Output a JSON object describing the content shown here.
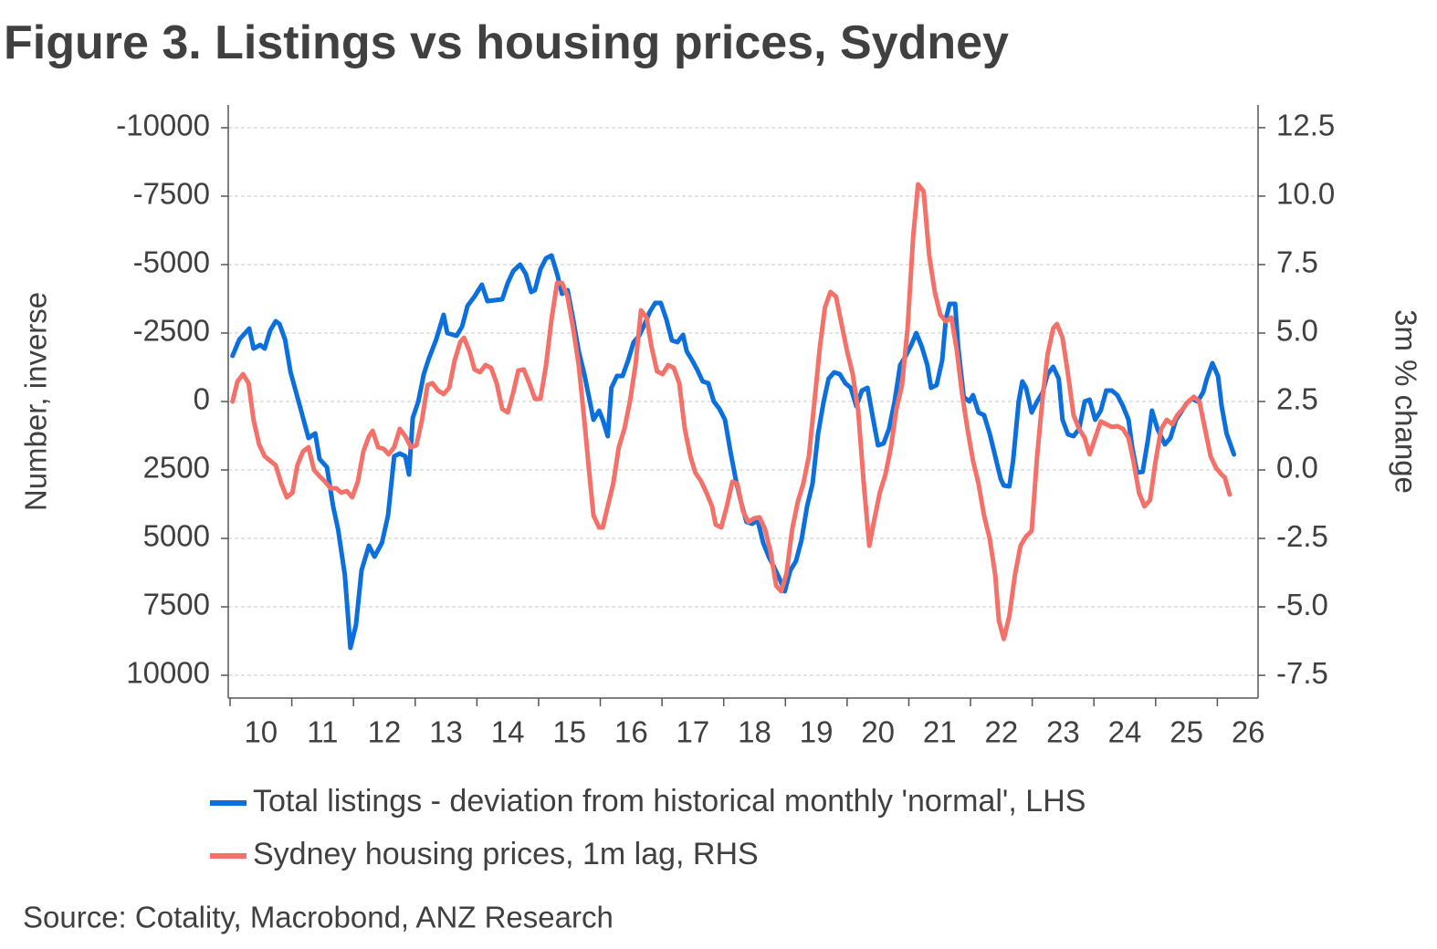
{
  "chart_data": {
    "type": "line",
    "title": "Figure 3. Listings vs housing prices, Sydney",
    "ylabel": "Number, inverse",
    "y2label": "3m % change",
    "source": "Source: Cotality, Macrobond, ANZ Research",
    "grid": true,
    "xlim": [
      2009.97,
      2026.66
    ],
    "xticks": [
      {
        "value": 2010,
        "label": "10"
      },
      {
        "value": 2011,
        "label": "11"
      },
      {
        "value": 2012,
        "label": "12"
      },
      {
        "value": 2013,
        "label": "13"
      },
      {
        "value": 2014,
        "label": "14"
      },
      {
        "value": 2015,
        "label": "15"
      },
      {
        "value": 2016,
        "label": "16"
      },
      {
        "value": 2017,
        "label": "17"
      },
      {
        "value": 2018,
        "label": "18"
      },
      {
        "value": 2019,
        "label": "19"
      },
      {
        "value": 2020,
        "label": "20"
      },
      {
        "value": 2021,
        "label": "21"
      },
      {
        "value": 2022,
        "label": "22"
      },
      {
        "value": 2023,
        "label": "23"
      },
      {
        "value": 2024,
        "label": "24"
      },
      {
        "value": 2025,
        "label": "25"
      },
      {
        "value": 2026,
        "label": "26"
      }
    ],
    "ylim": [
      10833,
      -10833
    ],
    "yticks": [
      -10000,
      -7500,
      -5000,
      -2500,
      0,
      2500,
      5000,
      7500,
      10000
    ],
    "y2lim": [
      -8.33,
      13.33
    ],
    "y2ticks": [
      {
        "value": 12.5,
        "label": "12.5"
      },
      {
        "value": 10,
        "label": "10.0"
      },
      {
        "value": 7.5,
        "label": "7.5"
      },
      {
        "value": 5,
        "label": "5.0"
      },
      {
        "value": 2.5,
        "label": "2.5"
      },
      {
        "value": 0,
        "label": "0.0"
      },
      {
        "value": -2.5,
        "label": "-2.5"
      },
      {
        "value": -5,
        "label": "-5.0"
      },
      {
        "value": -7.5,
        "label": "-7.5"
      }
    ],
    "series": [
      {
        "name": "Total listings - deviation from historical monthly 'normal', LHS",
        "color": "#0b6fdc",
        "axis": "y",
        "x": [
          2010.04,
          2010.15,
          2010.31,
          2010.38,
          2010.49,
          2010.56,
          2010.65,
          2010.74,
          2010.8,
          2010.89,
          2010.98,
          2011.15,
          2011.27,
          2011.38,
          2011.45,
          2011.57,
          2011.67,
          2011.75,
          2011.86,
          2011.95,
          2012.04,
          2012.13,
          2012.25,
          2012.34,
          2012.46,
          2012.56,
          2012.66,
          2012.75,
          2012.84,
          2012.9,
          2012.96,
          2013.05,
          2013.14,
          2013.22,
          2013.34,
          2013.46,
          2013.52,
          2013.67,
          2013.76,
          2013.85,
          2013.96,
          2014.08,
          2014.17,
          2014.41,
          2014.5,
          2014.59,
          2014.7,
          2014.79,
          2014.88,
          2014.94,
          2015.03,
          2015.12,
          2015.21,
          2015.3,
          2015.38,
          2015.47,
          2015.56,
          2015.65,
          2015.74,
          2015.83,
          2015.89,
          2015.98,
          2016.04,
          2016.12,
          2016.18,
          2016.27,
          2016.36,
          2016.45,
          2016.54,
          2016.63,
          2016.72,
          2016.8,
          2016.89,
          2016.98,
          2017.07,
          2017.16,
          2017.25,
          2017.34,
          2017.4,
          2017.49,
          2017.57,
          2017.66,
          2017.75,
          2017.84,
          2017.93,
          2018.02,
          2018.11,
          2018.2,
          2018.28,
          2018.37,
          2018.46,
          2018.55,
          2018.64,
          2018.73,
          2018.82,
          2018.91,
          2018.99,
          2019.08,
          2019.17,
          2019.26,
          2019.35,
          2019.44,
          2019.53,
          2019.62,
          2019.7,
          2019.79,
          2019.88,
          2019.97,
          2020.06,
          2020.15,
          2020.24,
          2020.33,
          2020.41,
          2020.5,
          2020.59,
          2020.68,
          2020.77,
          2020.86,
          2020.95,
          2021.04,
          2021.12,
          2021.21,
          2021.3,
          2021.36,
          2021.45,
          2021.54,
          2021.6,
          2021.66,
          2021.75,
          2021.8,
          2021.89,
          2021.98,
          2022.04,
          2022.13,
          2022.22,
          2022.31,
          2022.4,
          2022.49,
          2022.54,
          2022.63,
          2022.69,
          2022.78,
          2022.84,
          2022.9,
          2022.99,
          2023.08,
          2023.17,
          2023.25,
          2023.34,
          2023.43,
          2023.49,
          2023.58,
          2023.67,
          2023.76,
          2023.85,
          2023.93,
          2024.02,
          2024.11,
          2024.2,
          2024.29,
          2024.38,
          2024.47,
          2024.56,
          2024.62,
          2024.7,
          2024.79,
          2024.88,
          2024.94,
          2025.03,
          2025.15,
          2025.24,
          2025.33,
          2025.41,
          2025.5,
          2025.59,
          2025.68,
          2025.77,
          2025.83,
          2025.92,
          2026.01,
          2026.07,
          2026.15,
          2026.27
        ],
        "values": [
          -1667,
          -2267,
          -2667,
          -1933,
          -2067,
          -1933,
          -2600,
          -2933,
          -2833,
          -2267,
          -1067,
          333,
          1333,
          1167,
          2100,
          2400,
          3833,
          4667,
          6333,
          9000,
          8167,
          6167,
          5267,
          5667,
          5167,
          4167,
          2000,
          1900,
          2000,
          2667,
          600,
          0,
          -1000,
          -1567,
          -2267,
          -3167,
          -2500,
          -2400,
          -2733,
          -3500,
          -3833,
          -4267,
          -3667,
          -3733,
          -4333,
          -4767,
          -5000,
          -4667,
          -4000,
          -4067,
          -4833,
          -5233,
          -5333,
          -4667,
          -3933,
          -4067,
          -3000,
          -1833,
          -1000,
          0,
          667,
          333,
          667,
          1267,
          -500,
          -933,
          -933,
          -1500,
          -2167,
          -2400,
          -2833,
          -3267,
          -3600,
          -3600,
          -3000,
          -2233,
          -2167,
          -2433,
          -1833,
          -1500,
          -1167,
          -733,
          -667,
          0,
          267,
          667,
          1833,
          2900,
          3667,
          4400,
          4467,
          4333,
          5167,
          5667,
          6067,
          6500,
          6933,
          6167,
          5833,
          5067,
          3833,
          3000,
          1167,
          0,
          -833,
          -1067,
          -1000,
          -667,
          -500,
          167,
          -400,
          -500,
          500,
          1600,
          1533,
          1000,
          0,
          -1333,
          -1667,
          -2067,
          -2500,
          -2000,
          -1333,
          -500,
          -600,
          -1500,
          -3000,
          -3567,
          -3567,
          -2000,
          -167,
          0,
          -233,
          400,
          500,
          1167,
          2000,
          2833,
          3067,
          3100,
          2167,
          0,
          -733,
          -500,
          400,
          0,
          -333,
          -1000,
          -1267,
          -833,
          667,
          1200,
          1267,
          1000,
          0,
          -67,
          667,
          333,
          -400,
          -400,
          -233,
          167,
          667,
          1667,
          2600,
          2567,
          1333,
          333,
          1000,
          1567,
          1333,
          667,
          400,
          67,
          -100,
          0,
          -333,
          -833,
          -1400,
          -933,
          167,
          1167,
          1933
        ]
      },
      {
        "name": "Sydney housing prices, 1m lag, RHS",
        "color": "#f4716a",
        "axis": "y2",
        "x": [
          2010.04,
          2010.12,
          2010.21,
          2010.3,
          2010.38,
          2010.47,
          2010.56,
          2010.65,
          2010.74,
          2010.83,
          2010.92,
          2011.01,
          2011.09,
          2011.18,
          2011.27,
          2011.36,
          2011.45,
          2011.54,
          2011.63,
          2011.72,
          2011.8,
          2011.89,
          2011.98,
          2012.07,
          2012.16,
          2012.25,
          2012.31,
          2012.4,
          2012.49,
          2012.57,
          2012.66,
          2012.75,
          2012.84,
          2012.93,
          2013.02,
          2013.11,
          2013.2,
          2013.28,
          2013.37,
          2013.46,
          2013.55,
          2013.64,
          2013.73,
          2013.79,
          2013.88,
          2013.96,
          2014.05,
          2014.14,
          2014.23,
          2014.32,
          2014.41,
          2014.5,
          2014.59,
          2014.67,
          2014.76,
          2014.85,
          2014.94,
          2015.03,
          2015.12,
          2015.21,
          2015.3,
          2015.38,
          2015.47,
          2015.56,
          2015.65,
          2015.74,
          2015.83,
          2015.89,
          2015.98,
          2016.04,
          2016.12,
          2016.21,
          2016.3,
          2016.39,
          2016.48,
          2016.57,
          2016.66,
          2016.75,
          2016.83,
          2016.92,
          2017.01,
          2017.1,
          2017.19,
          2017.28,
          2017.37,
          2017.46,
          2017.54,
          2017.63,
          2017.72,
          2017.81,
          2017.87,
          2017.96,
          2018.05,
          2018.14,
          2018.22,
          2018.31,
          2018.4,
          2018.49,
          2018.58,
          2018.67,
          2018.76,
          2018.85,
          2018.93,
          2019.02,
          2019.11,
          2019.2,
          2019.29,
          2019.38,
          2019.47,
          2019.56,
          2019.64,
          2019.73,
          2019.82,
          2019.91,
          2020.0,
          2020.09,
          2020.18,
          2020.27,
          2020.36,
          2020.44,
          2020.53,
          2020.62,
          2020.71,
          2020.8,
          2020.89,
          2020.98,
          2021.07,
          2021.15,
          2021.24,
          2021.33,
          2021.42,
          2021.51,
          2021.6,
          2021.69,
          2021.78,
          2021.86,
          2021.95,
          2022.04,
          2022.13,
          2022.22,
          2022.31,
          2022.4,
          2022.46,
          2022.54,
          2022.63,
          2022.72,
          2022.81,
          2022.9,
          2022.99,
          2023.08,
          2023.17,
          2023.25,
          2023.34,
          2023.4,
          2023.49,
          2023.58,
          2023.67,
          2023.76,
          2023.85,
          2023.93,
          2024.02,
          2024.11,
          2024.2,
          2024.29,
          2024.38,
          2024.47,
          2024.56,
          2024.64,
          2024.73,
          2024.82,
          2024.91,
          2025.0,
          2025.09,
          2025.18,
          2025.27,
          2025.35,
          2025.44,
          2025.53,
          2025.62,
          2025.71,
          2025.8,
          2025.89,
          2025.98,
          2026.07,
          2026.12,
          2026.2
        ],
        "values": [
          2.5,
          3.23,
          3.5,
          3.17,
          1.83,
          0.93,
          0.5,
          0.33,
          0.17,
          -0.5,
          -1.0,
          -0.83,
          0.17,
          0.67,
          0.83,
          0,
          -0.23,
          -0.43,
          -0.67,
          -0.67,
          -0.83,
          -0.77,
          -1.0,
          -0.43,
          0.67,
          1.23,
          1.43,
          0.83,
          0.77,
          0.57,
          0.83,
          1.5,
          1.23,
          0.83,
          0.9,
          1.83,
          3.1,
          3.17,
          2.9,
          2.77,
          3.0,
          4.0,
          4.67,
          4.83,
          4.33,
          3.67,
          3.57,
          3.83,
          3.73,
          3.17,
          2.23,
          2.1,
          2.83,
          3.63,
          3.67,
          3.17,
          2.6,
          2.6,
          3.83,
          5.5,
          6.83,
          6.83,
          6.33,
          5.17,
          3.83,
          1.83,
          -0.33,
          -1.67,
          -2.1,
          -2.1,
          -1.33,
          -0.5,
          0.83,
          1.5,
          2.5,
          3.83,
          5.83,
          5.57,
          4.5,
          3.6,
          3.5,
          3.83,
          3.73,
          3.17,
          1.5,
          0.5,
          -0.1,
          -0.4,
          -0.83,
          -1.33,
          -2.0,
          -2.1,
          -1.33,
          -0.43,
          -0.5,
          -1.5,
          -1.9,
          -1.77,
          -1.73,
          -2.17,
          -3.0,
          -4.23,
          -4.43,
          -3.77,
          -2.17,
          -1.17,
          -0.5,
          0.5,
          2.5,
          4.5,
          5.93,
          6.5,
          6.33,
          5.33,
          4.33,
          3.5,
          2.17,
          -0.5,
          -2.77,
          -1.83,
          -0.83,
          -0.17,
          0.83,
          2.23,
          3.1,
          5.17,
          8.5,
          10.43,
          10.17,
          7.83,
          6.5,
          5.67,
          5.43,
          5.57,
          4.33,
          2.83,
          1.5,
          0.33,
          -0.5,
          -1.67,
          -2.5,
          -3.83,
          -5.5,
          -6.17,
          -5.33,
          -3.83,
          -2.77,
          -2.43,
          -2.23,
          0.5,
          2.67,
          4.23,
          5.17,
          5.33,
          4.83,
          3.5,
          2.0,
          1.5,
          1.17,
          0.57,
          1.17,
          1.77,
          1.67,
          1.57,
          1.6,
          1.5,
          1.17,
          0.33,
          -0.83,
          -1.33,
          -1.1,
          0.33,
          1.5,
          1.83,
          1.67,
          2.0,
          2.23,
          2.5,
          2.67,
          2.5,
          1.5,
          0.5,
          0.07,
          -0.17,
          -0.27,
          -0.9
        ]
      }
    ]
  }
}
